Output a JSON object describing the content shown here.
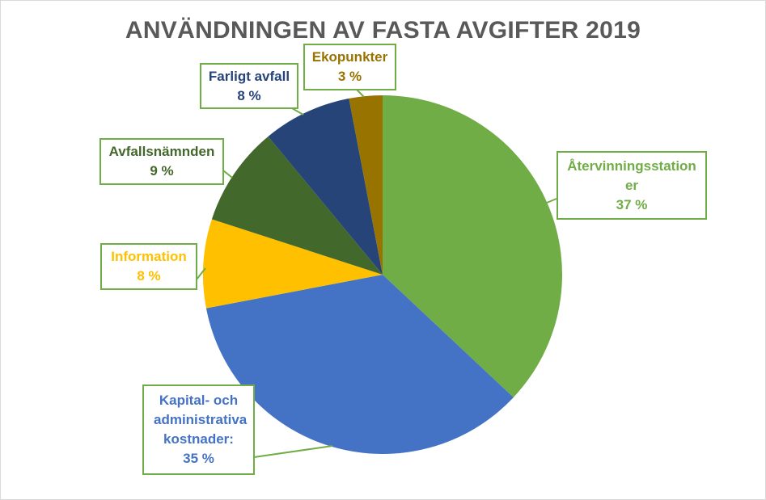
{
  "chart_data": {
    "type": "pie",
    "title": "ANVÄNDNINGEN AV FASTA AVGIFTER 2019",
    "start": "top",
    "direction": "clockwise",
    "slices": [
      {
        "label": "Återvinningsstation er",
        "value_label": "37 %",
        "value": 37,
        "color": "#70AD47"
      },
      {
        "label": "Kapital- och administrativa kostnader:",
        "value_label": "35 %",
        "value": 35,
        "color": "#4472C4"
      },
      {
        "label": "Information",
        "value_label": "8 %",
        "value": 8,
        "color": "#FFC000"
      },
      {
        "label": "Avfallsnämnden",
        "value_label": "9 %",
        "value": 9,
        "color": "#43682B"
      },
      {
        "label": "Farligt avfall",
        "value_label": "8 %",
        "value": 8,
        "color": "#264478"
      },
      {
        "label": "Ekopunkter",
        "value_label": "3 %",
        "value": 3,
        "color": "#997300"
      }
    ],
    "label_border_color": "#70AD47"
  }
}
